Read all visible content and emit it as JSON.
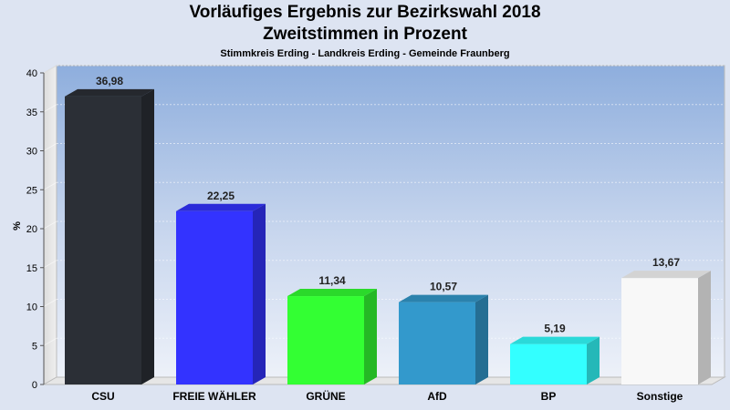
{
  "chart_data": {
    "type": "bar",
    "title": "Vorläufiges Ergebnis zur Bezirkswahl 2018",
    "subtitle": "Zweitstimmen in Prozent",
    "subtitle2": "Stimmkreis Erding - Landkreis Erding - Gemeinde Fraunberg",
    "ylabel": "%",
    "ylim": [
      0,
      40
    ],
    "yticks": [
      0,
      5,
      10,
      15,
      20,
      25,
      30,
      35,
      40
    ],
    "categories": [
      "CSU",
      "FREIE WÄHLER",
      "GRÜNE",
      "AfD",
      "BP",
      "Sonstige"
    ],
    "values": [
      36.98,
      22.25,
      11.34,
      10.57,
      5.19,
      13.67
    ],
    "value_labels": [
      "36,98",
      "22,25",
      "11,34",
      "10,57",
      "5,19",
      "13,67"
    ],
    "colors": [
      "#2b2f36",
      "#3333ff",
      "#33ff33",
      "#3399cc",
      "#33ffff",
      "#f8f8f8"
    ],
    "grid": true
  }
}
